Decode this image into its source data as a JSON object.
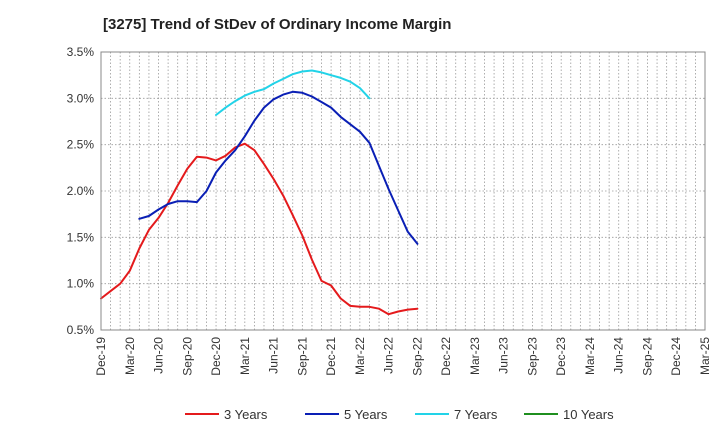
{
  "chart_data": {
    "type": "line",
    "title": "[3275]  Trend of StDev of Ordinary Income Margin",
    "xlabel": "",
    "ylabel": "",
    "x_ticks": [
      "Dec-19",
      "Mar-20",
      "Jun-20",
      "Sep-20",
      "Dec-20",
      "Mar-21",
      "Jun-21",
      "Sep-21",
      "Dec-21",
      "Mar-22",
      "Jun-22",
      "Sep-22",
      "Dec-22",
      "Mar-23",
      "Jun-23",
      "Sep-23",
      "Dec-23",
      "Mar-24",
      "Jun-24",
      "Sep-24",
      "Dec-24",
      "Mar-25"
    ],
    "y_ticks": [
      "0.5%",
      "1.0%",
      "1.5%",
      "2.0%",
      "2.5%",
      "3.0%",
      "3.5%"
    ],
    "ylim": [
      0.5,
      3.5
    ],
    "grid": true,
    "legend_position": "bottom",
    "series": [
      {
        "name": "3 Years",
        "color": "#e41a1c",
        "start_index": 0,
        "values": [
          0.84,
          0.92,
          1.0,
          1.14,
          1.38,
          1.58,
          1.71,
          1.87,
          2.06,
          2.24,
          2.37,
          2.36,
          2.33,
          2.38,
          2.47,
          2.51,
          2.44,
          2.29,
          2.13,
          1.95,
          1.74,
          1.52,
          1.26,
          1.03,
          0.98,
          0.84,
          0.76,
          0.75,
          0.75,
          0.73,
          0.67,
          0.7,
          0.72,
          0.73
        ]
      },
      {
        "name": "5 Years",
        "color": "#0a1fb5",
        "start_index": 4,
        "values": [
          1.7,
          1.73,
          1.8,
          1.86,
          1.89,
          1.89,
          1.88,
          2.0,
          2.2,
          2.33,
          2.44,
          2.59,
          2.76,
          2.9,
          2.99,
          3.04,
          3.07,
          3.06,
          3.02,
          2.96,
          2.9,
          2.8,
          2.72,
          2.64,
          2.52,
          2.27,
          2.02,
          1.79,
          1.56,
          1.43
        ]
      },
      {
        "name": "7 Years",
        "color": "#22d3e8",
        "start_index": 12,
        "values": [
          2.82,
          2.9,
          2.97,
          3.03,
          3.07,
          3.1,
          3.16,
          3.21,
          3.26,
          3.29,
          3.3,
          3.28,
          3.25,
          3.22,
          3.18,
          3.11,
          3.0
        ]
      },
      {
        "name": "10 Years",
        "color": "#1f8f1f",
        "start_index": 0,
        "values": []
      }
    ]
  }
}
